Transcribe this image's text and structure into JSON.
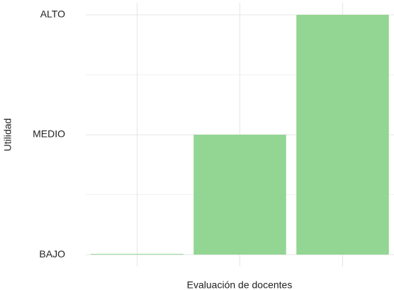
{
  "chart_data": {
    "type": "bar",
    "x_label": "Evaluación de docentes",
    "y_label": "Utilidad",
    "categories": [
      null,
      null,
      null
    ],
    "values": [
      1,
      2,
      3
    ],
    "color": "#93d592",
    "ylim": [
      0.9,
      3.1
    ],
    "yticks": [
      {
        "value": 1,
        "label": "BAJO"
      },
      {
        "value": 2,
        "label": "MEDIO"
      },
      {
        "value": 3,
        "label": "ALTO"
      }
    ],
    "minor_yticks": [
      1.5,
      2.5
    ],
    "grid": true
  }
}
